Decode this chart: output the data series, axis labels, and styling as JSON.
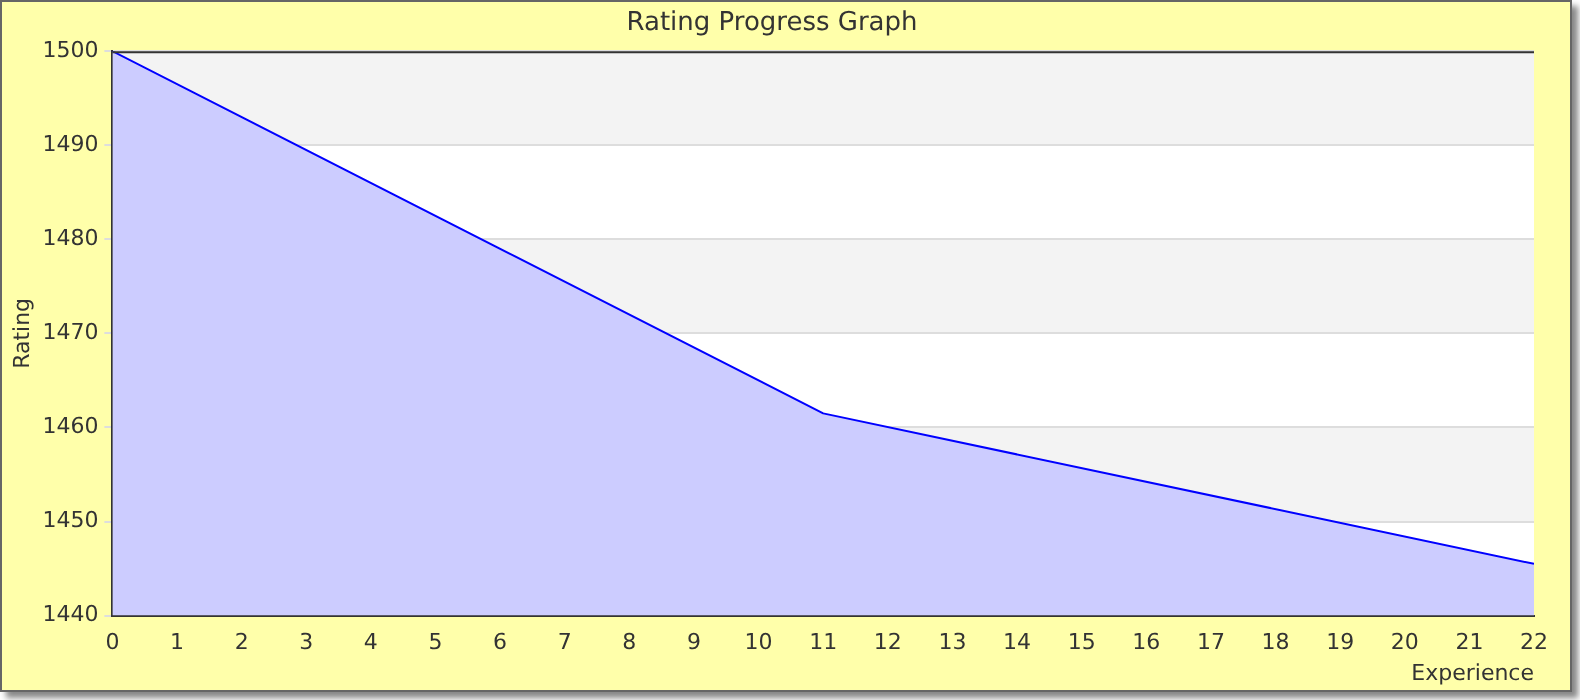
{
  "chart_data": {
    "type": "area",
    "title": "Rating Progress Graph",
    "xlabel": "Experience",
    "ylabel": "Rating",
    "x": [
      0,
      11,
      22
    ],
    "series": [
      {
        "color": "#0000ff",
        "values": [
          1500,
          1461.5,
          1445.5
        ]
      }
    ],
    "xlim": [
      0,
      22
    ],
    "xticks": [
      0,
      1,
      2,
      3,
      4,
      5,
      6,
      7,
      8,
      9,
      10,
      11,
      12,
      13,
      14,
      15,
      16,
      17,
      18,
      19,
      20,
      21,
      22
    ],
    "ylim": [
      1440,
      1500
    ],
    "yticks": [
      1440,
      1450,
      1460,
      1470,
      1480,
      1490,
      1500
    ],
    "grid": "y",
    "legend": false,
    "marker": "none"
  }
}
